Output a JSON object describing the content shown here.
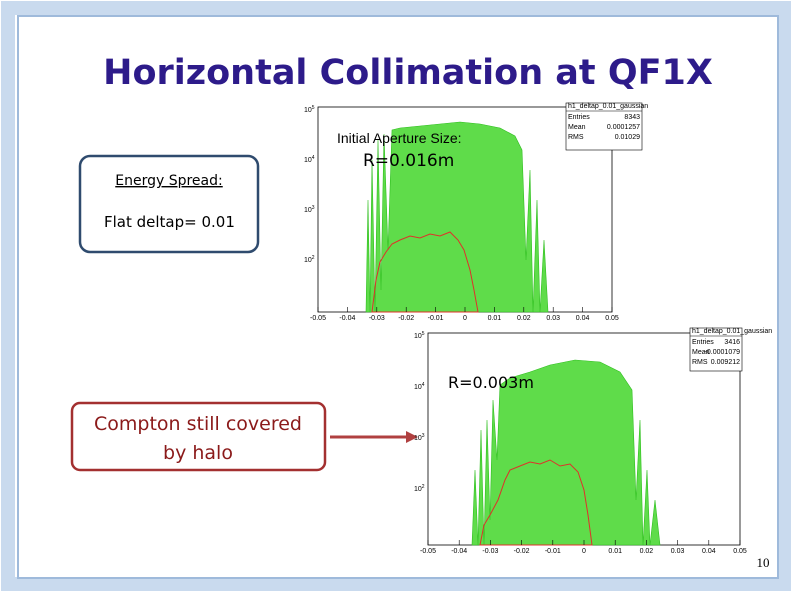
{
  "title": "Horizontal Collimation at QF1X",
  "energy_box": {
    "heading": "Energy Spread:",
    "text": "Flat deltap= 0.01"
  },
  "compton_box": {
    "line1": "Compton still covered",
    "line2": "by  halo"
  },
  "page_number": "10",
  "plots": [
    {
      "note": "Initial Aperture Size:",
      "label": "R=0.016m",
      "stats": {
        "name": "h1_deltap_0.01_gaussian",
        "rows": [
          [
            "Entries",
            "8343"
          ],
          [
            "Mean",
            "0.0001257"
          ],
          [
            "RMS",
            "0.01029"
          ]
        ]
      },
      "xticks": [
        "-0.05",
        "-0.04",
        "-0.03",
        "-0.02",
        "-0.01",
        "0",
        "0.01",
        "0.02",
        "0.03",
        "0.04",
        "0.05"
      ],
      "yticks": [
        {
          "base": "10",
          "exp": "5"
        },
        {
          "base": "10",
          "exp": "4"
        },
        {
          "base": "10",
          "exp": "3"
        },
        {
          "base": "10",
          "exp": "2"
        }
      ]
    },
    {
      "label": "R=0.003m",
      "stats": {
        "name": "h1_deltap_0.01_gaussian",
        "rows": [
          [
            "Entries",
            "3416"
          ],
          [
            "Mean",
            "-0.0001079"
          ],
          [
            "RMS",
            "0.009212"
          ]
        ]
      },
      "xticks": [
        "-0.05",
        "-0.04",
        "-0.03",
        "-0.02",
        "-0.01",
        "0",
        "0.01",
        "0.02",
        "0.03",
        "0.04",
        "0.05"
      ],
      "yticks": [
        {
          "base": "10",
          "exp": "5"
        },
        {
          "base": "10",
          "exp": "4"
        },
        {
          "base": "10",
          "exp": "3"
        },
        {
          "base": "10",
          "exp": "2"
        }
      ]
    }
  ]
}
